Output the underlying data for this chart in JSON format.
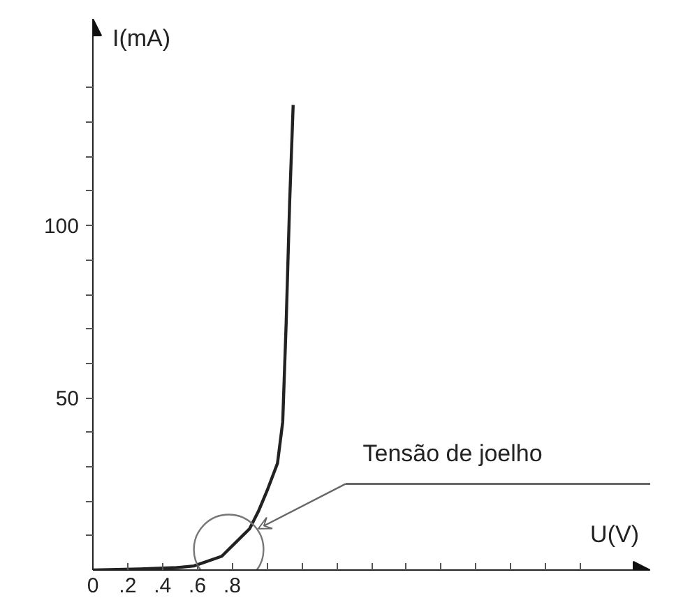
{
  "chart_data": {
    "type": "line",
    "xlabel": "U(V)",
    "ylabel": "I(mA)",
    "x": [
      0,
      0.27,
      0.48,
      0.58,
      0.74,
      0.9,
      0.95,
      1.0,
      1.06,
      1.09,
      1.11,
      1.13,
      1.15
    ],
    "values": [
      0,
      0.3,
      0.7,
      1.2,
      4,
      12,
      17,
      23,
      31,
      43,
      72,
      107,
      135
    ],
    "color": "#222222",
    "xlim": [
      0,
      3.2
    ],
    "ylim": [
      0,
      160
    ],
    "xticks": [
      0,
      {
        "value": 0.2,
        "label": ".2"
      },
      {
        "value": 0.4,
        "label": ".4"
      },
      {
        "value": 0.6,
        "label": ".6"
      },
      {
        "value": 0.8,
        "label": ".8"
      },
      {
        "value": 1.0,
        "label": null
      },
      {
        "value": 1.2,
        "label": null
      },
      {
        "value": 1.4,
        "label": null
      },
      {
        "value": 1.6,
        "label": null
      },
      {
        "value": 1.8,
        "label": null
      },
      {
        "value": 2.0,
        "label": null
      },
      {
        "value": 2.2,
        "label": null
      },
      {
        "value": 2.4,
        "label": null
      },
      {
        "value": 2.6,
        "label": null
      },
      {
        "value": 2.8,
        "label": null
      }
    ],
    "yticks": [
      {
        "value": 10,
        "label": null
      },
      {
        "value": 20,
        "label": null
      },
      {
        "value": 30,
        "label": null
      },
      {
        "value": 40,
        "label": null
      },
      50,
      {
        "value": 60,
        "label": null
      },
      {
        "value": 70,
        "label": null
      },
      {
        "value": 80,
        "label": null
      },
      {
        "value": 90,
        "label": null
      },
      100,
      {
        "value": 110,
        "label": null
      },
      {
        "value": 120,
        "label": null
      },
      {
        "value": 130,
        "label": null
      },
      {
        "value": 140,
        "label": null
      }
    ],
    "annotations": [
      "Tensão de joelho"
    ],
    "grid": false,
    "marker": "none",
    "line_style": "solid"
  }
}
